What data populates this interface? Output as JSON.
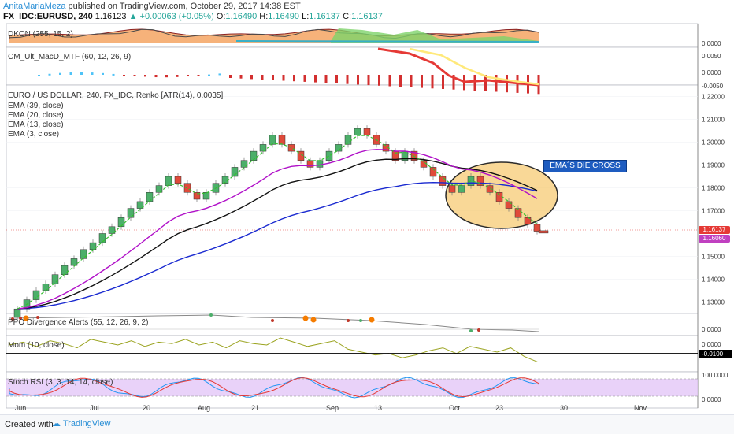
{
  "header": {
    "author": "AnitaMariaMeza",
    "published": "published on TradingView.com, October 29, 2017 14:38 EST",
    "symbol": "FX_IDC:EURUSD, 240",
    "last": "1.16123",
    "change": "+0.00063 (+0.05%)",
    "open_label": "O:",
    "open": "1.16490",
    "high_label": "H:",
    "high": "1.16490",
    "low_label": "L:",
    "low": "1.16137",
    "close_label": "C:",
    "close": "1.16137"
  },
  "panes": {
    "dkon": {
      "legend": "DKON (255, 15, 2)",
      "ticks": [
        "0.0000"
      ]
    },
    "macd": {
      "legend": "CM_Ult_MacD_MTF (60, 12, 26, 9)",
      "ticks": [
        "0.0050",
        "0.0000",
        "-0.0050"
      ]
    },
    "main": {
      "legend": [
        "EURO / US DOLLAR, 240, FX_IDC, Renko [ATR(14), 0.0035]",
        "EMA (39, close)",
        "EMA (20, close)",
        "EMA (13, close)",
        "EMA (3, close)"
      ],
      "ticks": [
        "1.22000",
        "1.21000",
        "1.20000",
        "1.19000",
        "1.18000",
        "1.17000",
        "1.15000",
        "1.14000",
        "1.13000"
      ],
      "badges": [
        {
          "value": "1.16137",
          "color": "#e53935"
        },
        {
          "value": "1.16060",
          "color": "#c040c0"
        }
      ],
      "annotation": "EMA´S DIE CROSS"
    },
    "ppo": {
      "legend": "PPO Divergence Alerts (55, 12, 26, 9, 2)",
      "ticks": [
        "0.0000"
      ]
    },
    "mom": {
      "legend": "Mom (10, close)",
      "ticks": [
        "0.0000",
        "-0.0100"
      ]
    },
    "stoch": {
      "legend": "Stoch RSI (3, 3, 14, 14, close)",
      "ticks": [
        "100.0000",
        "0.0000"
      ]
    }
  },
  "xaxis": [
    "Jun",
    "Jul",
    "20",
    "Aug",
    "21",
    "Sep",
    "13",
    "Oct",
    "23",
    "30",
    "Nov"
  ],
  "footer": {
    "created": "Created with",
    "brand": "TradingView"
  },
  "colors": {
    "bull": "#4caf6a",
    "bear": "#e04a3a",
    "ema39": "#1a2ad0",
    "ema20": "#111111",
    "ema13": "#b010c8",
    "ema3": "#35c030",
    "ellipse": "#f7c86b"
  },
  "chart_data": {
    "type": "line",
    "title": "EURO / US DOLLAR, 240, FX_IDC, Renko [ATR(14), 0.0035]",
    "x": [
      "Jun",
      "Jul",
      "20",
      "Aug",
      "21",
      "Sep",
      "13",
      "Oct",
      "23",
      "30",
      "Nov"
    ],
    "ylim": [
      1.125,
      1.225
    ],
    "renko_close": [
      1.127,
      1.131,
      1.135,
      1.138,
      1.142,
      1.146,
      1.149,
      1.153,
      1.156,
      1.16,
      1.163,
      1.167,
      1.171,
      1.174,
      1.178,
      1.181,
      1.185,
      1.182,
      1.178,
      1.175,
      1.178,
      1.182,
      1.185,
      1.189,
      1.192,
      1.196,
      1.199,
      1.203,
      1.199,
      1.196,
      1.192,
      1.189,
      1.192,
      1.196,
      1.199,
      1.203,
      1.206,
      1.203,
      1.199,
      1.196,
      1.192,
      1.196,
      1.192,
      1.189,
      1.185,
      1.181,
      1.178,
      1.181,
      1.185,
      1.181,
      1.178,
      1.174,
      1.171,
      1.167,
      1.164,
      1.161
    ]
  }
}
